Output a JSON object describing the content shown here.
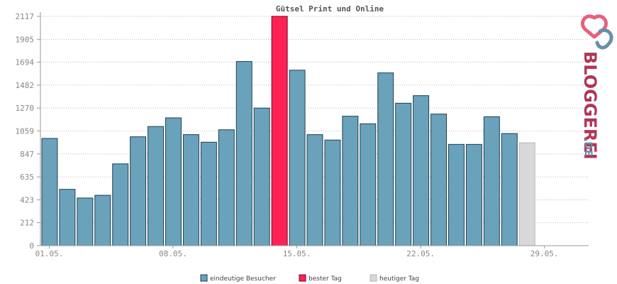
{
  "chart_data": {
    "type": "bar",
    "title": "Gütsel Print und Online",
    "ylim": [
      0,
      2117
    ],
    "yticks": [
      "0",
      "212",
      "423",
      "635",
      "847",
      "1059",
      "1270",
      "1482",
      "1694",
      "1905",
      "2117"
    ],
    "xtick_labels": [
      {
        "day_index": 0,
        "label": "01.05."
      },
      {
        "day_index": 7,
        "label": "08.05."
      },
      {
        "day_index": 14,
        "label": "15.05."
      },
      {
        "day_index": 21,
        "label": "22.05."
      },
      {
        "day_index": 28,
        "label": "29.05."
      }
    ],
    "days_on_axis": 31,
    "grid": true,
    "legend_position": "bottom",
    "series": [
      {
        "name": "eindeutige Besucher",
        "color": "#6aa2bb",
        "kind": "normal"
      },
      {
        "name": "bester Tag",
        "color": "#ff2255",
        "kind": "best"
      },
      {
        "name": "heutiger Tag",
        "color": "#d8d8d8",
        "kind": "today"
      }
    ],
    "bars": [
      {
        "day": "01.05.",
        "value": 990,
        "kind": "normal"
      },
      {
        "day": "02.05.",
        "value": 520,
        "kind": "normal"
      },
      {
        "day": "03.05.",
        "value": 440,
        "kind": "normal"
      },
      {
        "day": "04.05.",
        "value": 465,
        "kind": "normal"
      },
      {
        "day": "05.05.",
        "value": 755,
        "kind": "normal"
      },
      {
        "day": "06.05.",
        "value": 1005,
        "kind": "normal"
      },
      {
        "day": "07.05.",
        "value": 1100,
        "kind": "normal"
      },
      {
        "day": "08.05.",
        "value": 1180,
        "kind": "normal"
      },
      {
        "day": "09.05.",
        "value": 1025,
        "kind": "normal"
      },
      {
        "day": "10.05.",
        "value": 955,
        "kind": "normal"
      },
      {
        "day": "11.05.",
        "value": 1070,
        "kind": "normal"
      },
      {
        "day": "12.05.",
        "value": 1700,
        "kind": "normal"
      },
      {
        "day": "13.05.",
        "value": 1270,
        "kind": "normal"
      },
      {
        "day": "14.05.",
        "value": 2117,
        "kind": "best"
      },
      {
        "day": "15.05.",
        "value": 1620,
        "kind": "normal"
      },
      {
        "day": "16.05.",
        "value": 1025,
        "kind": "normal"
      },
      {
        "day": "17.05.",
        "value": 975,
        "kind": "normal"
      },
      {
        "day": "18.05.",
        "value": 1195,
        "kind": "normal"
      },
      {
        "day": "19.05.",
        "value": 1125,
        "kind": "normal"
      },
      {
        "day": "20.05.",
        "value": 1595,
        "kind": "normal"
      },
      {
        "day": "21.05.",
        "value": 1315,
        "kind": "normal"
      },
      {
        "day": "22.05.",
        "value": 1385,
        "kind": "normal"
      },
      {
        "day": "23.05.",
        "value": 1215,
        "kind": "normal"
      },
      {
        "day": "24.05.",
        "value": 935,
        "kind": "normal"
      },
      {
        "day": "25.05.",
        "value": 935,
        "kind": "normal"
      },
      {
        "day": "26.05.",
        "value": 1190,
        "kind": "normal"
      },
      {
        "day": "27.05.",
        "value": 1035,
        "kind": "normal"
      },
      {
        "day": "28.05.",
        "value": 950,
        "kind": "today"
      }
    ]
  },
  "brand": {
    "logo_text_main": "BLOGGEREI",
    "logo_text_tld": ".DE",
    "main_color": "#b03657",
    "tld_color": "#6a8fa8"
  }
}
